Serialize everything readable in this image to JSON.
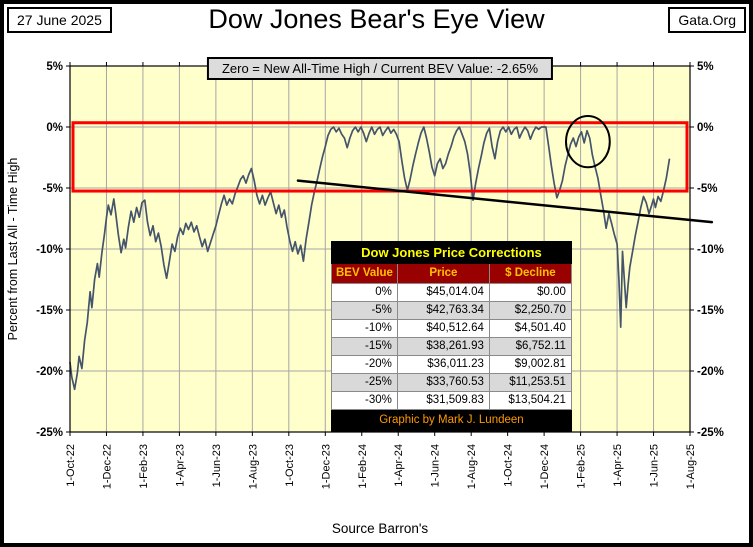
{
  "header": {
    "date_box": "27 June 2025",
    "site_box": "Gata.Org",
    "title": "Dow Jones Bear's Eye View",
    "subtitle": "Zero = New All-Time High / Current BEV Value:  -2.65%"
  },
  "footer": {
    "source": "Source Barron's"
  },
  "table": {
    "title": "Dow Jones Price Corrections",
    "columns": [
      "BEV Value",
      "Price",
      "$ Decline"
    ],
    "rows": [
      [
        "0%",
        "$45,014.04",
        "$0.00"
      ],
      [
        "-5%",
        "$42,763.34",
        "$2,250.70"
      ],
      [
        "-10%",
        "$40,512.64",
        "$4,501.40"
      ],
      [
        "-15%",
        "$38,261.93",
        "$6,752.11"
      ],
      [
        "-20%",
        "$36,011.23",
        "$9,002.81"
      ],
      [
        "-25%",
        "$33,760.53",
        "$11,253.51"
      ],
      [
        "-30%",
        "$31,509.83",
        "$13,504.21"
      ]
    ],
    "footer": "Graphic by Mark J. Lundeen"
  },
  "chart_data": {
    "type": "line",
    "title": "Dow Jones Bear's Eye View",
    "ylabel": "Percent from  Last All - Time  High",
    "current_bev": "-2.65%",
    "ylim": [
      -25,
      5
    ],
    "grid": true,
    "x_months_from": "1-Oct-22",
    "x_tick_labels": [
      "1-Oct-22",
      "1-Dec-22",
      "1-Feb-23",
      "1-Apr-23",
      "1-Jun-23",
      "1-Aug-23",
      "1-Oct-23",
      "1-Dec-23",
      "1-Feb-24",
      "1-Apr-24",
      "1-Jun-24",
      "1-Aug-24",
      "1-Oct-24",
      "1-Dec-24",
      "1-Feb-25",
      "1-Apr-25",
      "1-Jun-25",
      "1-Aug-25"
    ],
    "y_tick_labels": [
      "5%",
      "0%",
      "-5%",
      "-10%",
      "-15%",
      "-20%",
      "-25%"
    ],
    "y_tick_values": [
      5,
      0,
      -5,
      -10,
      -15,
      -20,
      -25
    ],
    "colors": {
      "plot_bg": "#FFFFCC",
      "grid": "#A6A6A6",
      "series": "#44546A",
      "red_band": "#FF0000",
      "annotation": "#000000",
      "subtitle_bg": "#DCDCDC",
      "table_title_bg": "#000000",
      "table_title_fg": "#FFFF00",
      "table_head_bg": "#990000",
      "table_head_fg": "#FFC000",
      "table_foot_fg": "#FF9900",
      "row_alt_bg": "#D9D9D9"
    },
    "annotations": {
      "red_band": {
        "y_top": 0.35,
        "y_bottom": -5.25
      },
      "trend_line": {
        "x1": 12.5,
        "y1": -4.4,
        "x2": 35.2,
        "y2": -7.8
      },
      "ellipse": {
        "cx": 28.4,
        "cy": -1.2,
        "rx_months": 1.2,
        "ry_pct": 2.1
      }
    },
    "points": [
      [
        0,
        -19.3
      ],
      [
        0.1,
        -20.5
      ],
      [
        0.25,
        -21.5
      ],
      [
        0.4,
        -20.2
      ],
      [
        0.5,
        -18.8
      ],
      [
        0.65,
        -19.8
      ],
      [
        0.8,
        -17.5
      ],
      [
        0.95,
        -16
      ],
      [
        1.1,
        -13.5
      ],
      [
        1.2,
        -14.8
      ],
      [
        1.35,
        -12.5
      ],
      [
        1.5,
        -11.2
      ],
      [
        1.6,
        -12.3
      ],
      [
        1.75,
        -10.3
      ],
      [
        1.9,
        -8.7
      ],
      [
        2,
        -7.4
      ],
      [
        2.1,
        -6.4
      ],
      [
        2.25,
        -7.2
      ],
      [
        2.4,
        -5.9
      ],
      [
        2.5,
        -7
      ],
      [
        2.65,
        -8.8
      ],
      [
        2.8,
        -10.3
      ],
      [
        2.95,
        -9.2
      ],
      [
        3.05,
        -9.9
      ],
      [
        3.2,
        -8.2
      ],
      [
        3.35,
        -6.9
      ],
      [
        3.5,
        -7.8
      ],
      [
        3.65,
        -6.6
      ],
      [
        3.8,
        -7.4
      ],
      [
        3.95,
        -6.2
      ],
      [
        4.1,
        -6
      ],
      [
        4.25,
        -7.8
      ],
      [
        4.4,
        -8.9
      ],
      [
        4.55,
        -8.1
      ],
      [
        4.7,
        -9.4
      ],
      [
        4.85,
        -8.7
      ],
      [
        5,
        -9.8
      ],
      [
        5.15,
        -11.3
      ],
      [
        5.3,
        -12.4
      ],
      [
        5.45,
        -11
      ],
      [
        5.6,
        -9.6
      ],
      [
        5.75,
        -10.2
      ],
      [
        5.9,
        -9
      ],
      [
        6.05,
        -8.3
      ],
      [
        6.2,
        -8.8
      ],
      [
        6.35,
        -7.9
      ],
      [
        6.5,
        -8.4
      ],
      [
        6.65,
        -7.8
      ],
      [
        6.8,
        -8.6
      ],
      [
        6.95,
        -8.1
      ],
      [
        7.1,
        -9
      ],
      [
        7.25,
        -9.8
      ],
      [
        7.4,
        -9.2
      ],
      [
        7.55,
        -10.2
      ],
      [
        7.7,
        -9.5
      ],
      [
        7.85,
        -8.8
      ],
      [
        8,
        -8.1
      ],
      [
        8.15,
        -7.2
      ],
      [
        8.3,
        -6.3
      ],
      [
        8.45,
        -5.6
      ],
      [
        8.6,
        -6.4
      ],
      [
        8.75,
        -5.9
      ],
      [
        8.9,
        -6.3
      ],
      [
        9.05,
        -5.5
      ],
      [
        9.2,
        -4.9
      ],
      [
        9.35,
        -4.3
      ],
      [
        9.5,
        -4
      ],
      [
        9.65,
        -4.6
      ],
      [
        9.8,
        -3.9
      ],
      [
        9.95,
        -3.4
      ],
      [
        10.1,
        -4.4
      ],
      [
        10.25,
        -5.6
      ],
      [
        10.4,
        -6.3
      ],
      [
        10.55,
        -5.6
      ],
      [
        10.7,
        -6.4
      ],
      [
        10.85,
        -5.8
      ],
      [
        11,
        -5.3
      ],
      [
        11.15,
        -6.2
      ],
      [
        11.3,
        -7.1
      ],
      [
        11.45,
        -6.4
      ],
      [
        11.6,
        -7.4
      ],
      [
        11.75,
        -6.8
      ],
      [
        11.9,
        -8.2
      ],
      [
        12.05,
        -9.3
      ],
      [
        12.2,
        -10.2
      ],
      [
        12.35,
        -9.4
      ],
      [
        12.5,
        -10.4
      ],
      [
        12.65,
        -9.7
      ],
      [
        12.8,
        -11
      ],
      [
        12.95,
        -9.2
      ],
      [
        13.1,
        -7.8
      ],
      [
        13.25,
        -6.4
      ],
      [
        13.4,
        -5.3
      ],
      [
        13.55,
        -4.4
      ],
      [
        13.7,
        -3.4
      ],
      [
        13.85,
        -2.4
      ],
      [
        14,
        -1.6
      ],
      [
        14.15,
        -0.7
      ],
      [
        14.3,
        -0.2
      ],
      [
        14.45,
        0
      ],
      [
        14.6,
        -0.4
      ],
      [
        14.75,
        -0.1
      ],
      [
        14.9,
        -0.6
      ],
      [
        15.05,
        -0.9
      ],
      [
        15.2,
        -1.7
      ],
      [
        15.35,
        -0.9
      ],
      [
        15.5,
        -0.3
      ],
      [
        15.65,
        0
      ],
      [
        15.8,
        -0.4
      ],
      [
        15.95,
        0
      ],
      [
        16.1,
        -0.5
      ],
      [
        16.25,
        -1.2
      ],
      [
        16.4,
        -0.5
      ],
      [
        16.55,
        0
      ],
      [
        16.7,
        -0.6
      ],
      [
        16.85,
        -0.2
      ],
      [
        17,
        0
      ],
      [
        17.15,
        -0.7
      ],
      [
        17.3,
        -0.3
      ],
      [
        17.45,
        0
      ],
      [
        17.6,
        -0.5
      ],
      [
        17.75,
        -0.2
      ],
      [
        17.9,
        -0.6
      ],
      [
        18.05,
        -1.2
      ],
      [
        18.2,
        -2.8
      ],
      [
        18.35,
        -4.2
      ],
      [
        18.5,
        -5.2
      ],
      [
        18.65,
        -4.3
      ],
      [
        18.8,
        -3.2
      ],
      [
        18.95,
        -2.2
      ],
      [
        19.1,
        -1.3
      ],
      [
        19.25,
        -0.5
      ],
      [
        19.4,
        0
      ],
      [
        19.55,
        -0.9
      ],
      [
        19.7,
        -2
      ],
      [
        19.85,
        -3.3
      ],
      [
        20,
        -4
      ],
      [
        20.15,
        -3
      ],
      [
        20.3,
        -2.6
      ],
      [
        20.45,
        -3.4
      ],
      [
        20.6,
        -3
      ],
      [
        20.75,
        -2.2
      ],
      [
        20.9,
        -1.6
      ],
      [
        21.05,
        -0.8
      ],
      [
        21.2,
        -0.3
      ],
      [
        21.35,
        0
      ],
      [
        21.5,
        -0.6
      ],
      [
        21.65,
        -1.2
      ],
      [
        21.8,
        -2.2
      ],
      [
        21.95,
        -3.8
      ],
      [
        22.1,
        -6
      ],
      [
        22.25,
        -4.6
      ],
      [
        22.4,
        -3.4
      ],
      [
        22.55,
        -2.4
      ],
      [
        22.7,
        -1.3
      ],
      [
        22.85,
        -0.5
      ],
      [
        23,
        -0.1
      ],
      [
        23.15,
        -1.6
      ],
      [
        23.3,
        -2.6
      ],
      [
        23.45,
        -1.2
      ],
      [
        23.6,
        -0.3
      ],
      [
        23.75,
        0
      ],
      [
        23.9,
        -0.4
      ],
      [
        24.05,
        0
      ],
      [
        24.2,
        -0.6
      ],
      [
        24.35,
        -0.2
      ],
      [
        24.5,
        0
      ],
      [
        24.65,
        -0.9
      ],
      [
        24.8,
        -0.4
      ],
      [
        24.95,
        0
      ],
      [
        25.1,
        -0.3
      ],
      [
        25.25,
        -1
      ],
      [
        25.4,
        -0.4
      ],
      [
        25.55,
        0
      ],
      [
        25.7,
        -0.2
      ],
      [
        25.85,
        0
      ],
      [
        26.1,
        0
      ],
      [
        26.25,
        -1.6
      ],
      [
        26.4,
        -3.2
      ],
      [
        26.55,
        -4.6
      ],
      [
        26.7,
        -5.8
      ],
      [
        26.85,
        -5.2
      ],
      [
        27,
        -4.4
      ],
      [
        27.15,
        -3.2
      ],
      [
        27.3,
        -2.3
      ],
      [
        27.45,
        -1.4
      ],
      [
        27.6,
        -0.9
      ],
      [
        27.75,
        -1.6
      ],
      [
        27.9,
        -0.8
      ],
      [
        28.05,
        -0.4
      ],
      [
        28.2,
        -1.3
      ],
      [
        28.35,
        -0.3
      ],
      [
        28.5,
        -0.9
      ],
      [
        28.65,
        -2.3
      ],
      [
        28.8,
        -3.3
      ],
      [
        28.95,
        -4.2
      ],
      [
        29.1,
        -5.5
      ],
      [
        29.25,
        -6.8
      ],
      [
        29.4,
        -8.3
      ],
      [
        29.55,
        -7.1
      ],
      [
        29.7,
        -7.9
      ],
      [
        29.85,
        -8.8
      ],
      [
        30,
        -9.6
      ],
      [
        30.1,
        -12.5
      ],
      [
        30.2,
        -16.4
      ],
      [
        30.3,
        -10.2
      ],
      [
        30.4,
        -12.6
      ],
      [
        30.5,
        -14.8
      ],
      [
        30.6,
        -13
      ],
      [
        30.7,
        -11.5
      ],
      [
        30.85,
        -10.2
      ],
      [
        31,
        -8.9
      ],
      [
        31.15,
        -7.8
      ],
      [
        31.3,
        -6.6
      ],
      [
        31.45,
        -5.7
      ],
      [
        31.6,
        -6.2
      ],
      [
        31.75,
        -7.1
      ],
      [
        31.9,
        -6.4
      ],
      [
        32,
        -5.9
      ],
      [
        32.1,
        -6.6
      ],
      [
        32.25,
        -5.7
      ],
      [
        32.4,
        -6.1
      ],
      [
        32.55,
        -5.2
      ],
      [
        32.7,
        -4.2
      ],
      [
        32.8,
        -3.3
      ],
      [
        32.87,
        -2.65
      ]
    ]
  }
}
